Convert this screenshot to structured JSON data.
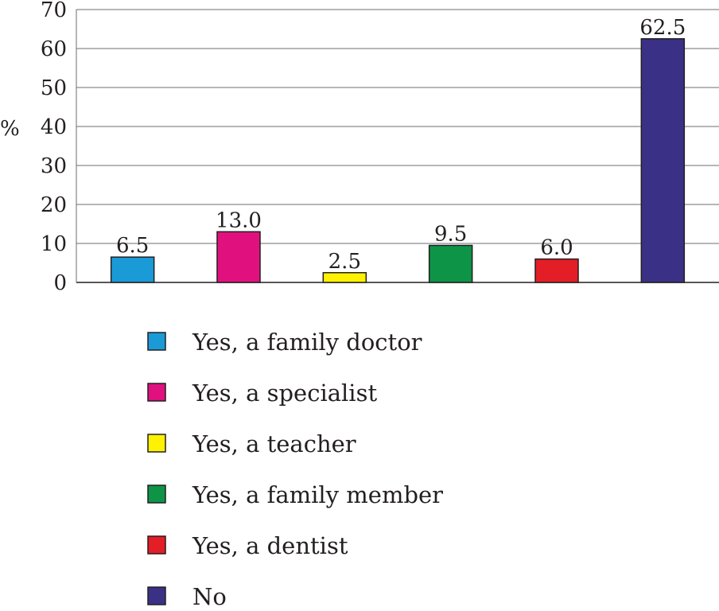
{
  "chart_data": {
    "type": "bar",
    "title": "",
    "xlabel": "",
    "ylabel": "%",
    "ylim": [
      0,
      70
    ],
    "yticks": [
      0,
      10,
      20,
      30,
      40,
      50,
      60,
      70
    ],
    "grid": true,
    "legend_position": "bottom",
    "categories": [
      "Yes, a family doctor",
      "Yes, a specialist",
      "Yes, a teacher",
      "Yes, a family member",
      "Yes, a dentist",
      "No"
    ],
    "values": [
      6.5,
      13.0,
      2.5,
      9.5,
      6.0,
      62.5
    ],
    "value_labels": [
      "6.5",
      "13.0",
      "2.5",
      "9.5",
      "6.0",
      "62.5"
    ],
    "colors": [
      "#1a9ad6",
      "#e0117f",
      "#fff200",
      "#0d9447",
      "#e41e26",
      "#3a3186"
    ]
  }
}
